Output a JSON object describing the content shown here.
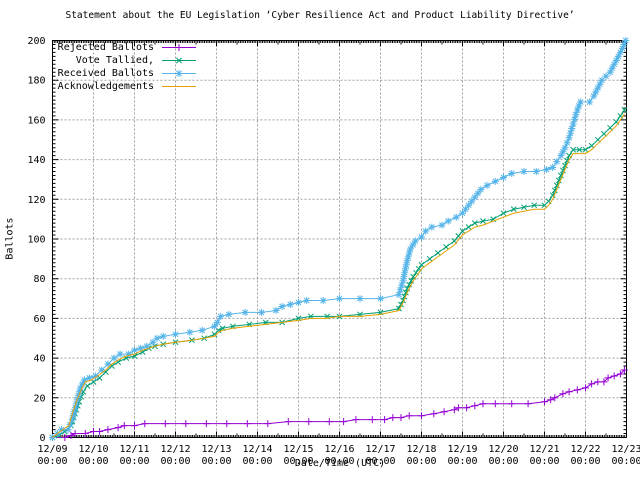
{
  "chart": {
    "title": "Statement about the EU Legislation ‘Cyber Resilience Act and Product Liability Directive’",
    "xlabel": "Date/Time (UTC)",
    "ylabel": "Ballots"
  },
  "legend": {
    "items": [
      {
        "label": "Rejected Ballots"
      },
      {
        "label": "Vote Tallied,"
      },
      {
        "label": "Received Ballots"
      },
      {
        "label": "Acknowledgements"
      }
    ]
  },
  "chart_data": {
    "type": "line",
    "title": "Statement about the EU Legislation ‘Cyber Resilience Act and Product Liability Directive’",
    "xlabel": "Date/Time (UTC)",
    "ylabel": "Ballots",
    "x_unit": "days since 12/09 00:00 UTC",
    "xlim": [
      0,
      14
    ],
    "ylim": [
      0,
      200
    ],
    "grid": true,
    "legend_position": "top-left",
    "y_ticks": [
      0,
      20,
      40,
      60,
      80,
      100,
      120,
      140,
      160,
      180,
      200
    ],
    "x_ticks": [
      {
        "date": "12/09",
        "time": "00:00"
      },
      {
        "date": "12/10",
        "time": "00:00"
      },
      {
        "date": "12/11",
        "time": "00:00"
      },
      {
        "date": "12/12",
        "time": "00:00"
      },
      {
        "date": "12/13",
        "time": "00:00"
      },
      {
        "date": "12/14",
        "time": "00:00"
      },
      {
        "date": "12/15",
        "time": "00:00"
      },
      {
        "date": "12/16",
        "time": "00:00"
      },
      {
        "date": "12/17",
        "time": "00:00"
      },
      {
        "date": "12/18",
        "time": "00:00"
      },
      {
        "date": "12/19",
        "time": "00:00"
      },
      {
        "date": "12/20",
        "time": "00:00"
      },
      {
        "date": "12/21",
        "time": "00:00"
      },
      {
        "date": "12/22",
        "time": "00:00"
      },
      {
        "date": "12/23",
        "time": "00:00"
      }
    ],
    "series": [
      {
        "name": "Rejected Ballots",
        "color": "#9400d3",
        "marker": "plus",
        "points": [
          [
            0,
            0
          ],
          [
            0.3,
            0
          ],
          [
            0.45,
            1
          ],
          [
            0.55,
            2
          ],
          [
            0.8,
            2
          ],
          [
            1.0,
            3
          ],
          [
            1.15,
            3
          ],
          [
            1.35,
            4
          ],
          [
            1.6,
            5
          ],
          [
            1.75,
            6
          ],
          [
            2.0,
            6
          ],
          [
            2.25,
            7
          ],
          [
            2.75,
            7
          ],
          [
            3.25,
            7
          ],
          [
            3.75,
            7
          ],
          [
            4.25,
            7
          ],
          [
            4.75,
            7
          ],
          [
            5.25,
            7
          ],
          [
            5.75,
            8
          ],
          [
            6.25,
            8
          ],
          [
            6.75,
            8
          ],
          [
            7.1,
            8
          ],
          [
            7.4,
            9
          ],
          [
            7.8,
            9
          ],
          [
            8.1,
            9
          ],
          [
            8.3,
            10
          ],
          [
            8.5,
            10
          ],
          [
            8.7,
            11
          ],
          [
            9.0,
            11
          ],
          [
            9.3,
            12
          ],
          [
            9.55,
            13
          ],
          [
            9.8,
            14
          ],
          [
            9.9,
            15
          ],
          [
            10.1,
            15
          ],
          [
            10.3,
            16
          ],
          [
            10.5,
            17
          ],
          [
            10.8,
            17
          ],
          [
            11.2,
            17
          ],
          [
            11.6,
            17
          ],
          [
            12.0,
            18
          ],
          [
            12.15,
            19
          ],
          [
            12.25,
            20
          ],
          [
            12.45,
            22
          ],
          [
            12.6,
            23
          ],
          [
            12.8,
            24
          ],
          [
            13.0,
            25
          ],
          [
            13.15,
            27
          ],
          [
            13.3,
            28
          ],
          [
            13.45,
            28
          ],
          [
            13.55,
            30
          ],
          [
            13.7,
            31
          ],
          [
            13.85,
            32
          ],
          [
            13.95,
            34
          ]
        ]
      },
      {
        "name": "Vote Tallied,",
        "color": "#009e73",
        "marker": "cross",
        "points": [
          [
            0,
            0
          ],
          [
            0.15,
            1
          ],
          [
            0.3,
            3
          ],
          [
            0.45,
            6
          ],
          [
            0.55,
            12
          ],
          [
            0.65,
            18
          ],
          [
            0.75,
            23
          ],
          [
            0.85,
            26
          ],
          [
            1.0,
            28
          ],
          [
            1.15,
            30
          ],
          [
            1.3,
            33
          ],
          [
            1.45,
            36
          ],
          [
            1.6,
            38
          ],
          [
            1.8,
            40
          ],
          [
            2.0,
            41
          ],
          [
            2.2,
            43
          ],
          [
            2.35,
            45
          ],
          [
            2.5,
            46
          ],
          [
            2.7,
            47
          ],
          [
            3.0,
            48
          ],
          [
            3.4,
            49
          ],
          [
            3.7,
            50
          ],
          [
            3.95,
            52
          ],
          [
            4.05,
            54
          ],
          [
            4.15,
            55
          ],
          [
            4.4,
            56
          ],
          [
            4.8,
            57
          ],
          [
            5.2,
            58
          ],
          [
            5.6,
            58
          ],
          [
            6.0,
            60
          ],
          [
            6.3,
            61
          ],
          [
            6.7,
            61
          ],
          [
            7.0,
            61
          ],
          [
            7.5,
            62
          ],
          [
            8.0,
            63
          ],
          [
            8.45,
            65
          ],
          [
            8.55,
            69
          ],
          [
            8.65,
            75
          ],
          [
            8.8,
            81
          ],
          [
            9.0,
            87
          ],
          [
            9.2,
            90
          ],
          [
            9.4,
            93
          ],
          [
            9.6,
            96
          ],
          [
            9.8,
            99
          ],
          [
            10.0,
            104
          ],
          [
            10.15,
            106
          ],
          [
            10.3,
            108
          ],
          [
            10.5,
            109
          ],
          [
            10.75,
            110
          ],
          [
            11.0,
            113
          ],
          [
            11.25,
            115
          ],
          [
            11.5,
            116
          ],
          [
            11.75,
            117
          ],
          [
            12.0,
            117
          ],
          [
            12.1,
            119
          ],
          [
            12.2,
            122
          ],
          [
            12.3,
            127
          ],
          [
            12.4,
            132
          ],
          [
            12.5,
            137
          ],
          [
            12.6,
            142
          ],
          [
            12.7,
            145
          ],
          [
            12.85,
            145
          ],
          [
            13.0,
            145
          ],
          [
            13.15,
            147
          ],
          [
            13.3,
            150
          ],
          [
            13.45,
            153
          ],
          [
            13.6,
            156
          ],
          [
            13.75,
            159
          ],
          [
            13.85,
            162
          ],
          [
            13.95,
            165
          ]
        ]
      },
      {
        "name": "Received Ballots",
        "color": "#56b4e9",
        "marker": "star",
        "points": [
          [
            0,
            0
          ],
          [
            0.12,
            2
          ],
          [
            0.22,
            4
          ],
          [
            0.38,
            4
          ],
          [
            0.48,
            9
          ],
          [
            0.58,
            17
          ],
          [
            0.68,
            25
          ],
          [
            0.78,
            29
          ],
          [
            0.9,
            30
          ],
          [
            1.05,
            31
          ],
          [
            1.2,
            34
          ],
          [
            1.35,
            37
          ],
          [
            1.5,
            40
          ],
          [
            1.65,
            42
          ],
          [
            1.85,
            42
          ],
          [
            2.0,
            44
          ],
          [
            2.15,
            45
          ],
          [
            2.3,
            46
          ],
          [
            2.45,
            48
          ],
          [
            2.55,
            50
          ],
          [
            2.7,
            51
          ],
          [
            3.0,
            52
          ],
          [
            3.35,
            53
          ],
          [
            3.65,
            54
          ],
          [
            3.95,
            56
          ],
          [
            4.02,
            58
          ],
          [
            4.1,
            61
          ],
          [
            4.3,
            62
          ],
          [
            4.7,
            63
          ],
          [
            5.1,
            63
          ],
          [
            5.45,
            64
          ],
          [
            5.6,
            66
          ],
          [
            5.8,
            67
          ],
          [
            6.0,
            68
          ],
          [
            6.2,
            69
          ],
          [
            6.6,
            69
          ],
          [
            7.0,
            70
          ],
          [
            7.5,
            70
          ],
          [
            8.0,
            70
          ],
          [
            8.45,
            72
          ],
          [
            8.55,
            79
          ],
          [
            8.65,
            89
          ],
          [
            8.73,
            95
          ],
          [
            8.85,
            99
          ],
          [
            9.0,
            101
          ],
          [
            9.1,
            104
          ],
          [
            9.25,
            106
          ],
          [
            9.5,
            107
          ],
          [
            9.65,
            109
          ],
          [
            9.85,
            111
          ],
          [
            10.0,
            113
          ],
          [
            10.15,
            117
          ],
          [
            10.3,
            121
          ],
          [
            10.45,
            125
          ],
          [
            10.6,
            127
          ],
          [
            10.8,
            129
          ],
          [
            11.0,
            131
          ],
          [
            11.2,
            133
          ],
          [
            11.5,
            134
          ],
          [
            11.8,
            134
          ],
          [
            12.05,
            135
          ],
          [
            12.2,
            136
          ],
          [
            12.3,
            139
          ],
          [
            12.4,
            142
          ],
          [
            12.5,
            146
          ],
          [
            12.6,
            151
          ],
          [
            12.7,
            158
          ],
          [
            12.8,
            165
          ],
          [
            12.88,
            169
          ],
          [
            13.1,
            169
          ],
          [
            13.2,
            172
          ],
          [
            13.3,
            176
          ],
          [
            13.4,
            180
          ],
          [
            13.5,
            182
          ],
          [
            13.6,
            184
          ],
          [
            13.7,
            188
          ],
          [
            13.8,
            192
          ],
          [
            13.9,
            196
          ],
          [
            13.98,
            200
          ]
        ]
      },
      {
        "name": "Acknowledgements",
        "color": "#e69f00",
        "marker": "none",
        "points": [
          [
            0,
            0
          ],
          [
            0.12,
            2
          ],
          [
            0.25,
            4
          ],
          [
            0.4,
            6
          ],
          [
            0.5,
            13
          ],
          [
            0.6,
            19
          ],
          [
            0.7,
            24
          ],
          [
            0.8,
            28
          ],
          [
            0.95,
            29
          ],
          [
            1.1,
            31
          ],
          [
            1.3,
            34
          ],
          [
            1.45,
            37
          ],
          [
            1.6,
            39
          ],
          [
            1.8,
            41
          ],
          [
            2.0,
            42
          ],
          [
            2.2,
            44
          ],
          [
            2.35,
            45
          ],
          [
            2.5,
            46
          ],
          [
            2.7,
            47
          ],
          [
            3.0,
            48
          ],
          [
            3.4,
            49
          ],
          [
            3.7,
            50
          ],
          [
            3.95,
            51
          ],
          [
            4.05,
            53
          ],
          [
            4.15,
            54
          ],
          [
            4.4,
            55
          ],
          [
            4.8,
            56
          ],
          [
            5.2,
            57
          ],
          [
            5.6,
            58
          ],
          [
            6.0,
            59
          ],
          [
            6.3,
            60
          ],
          [
            6.7,
            60
          ],
          [
            7.0,
            61
          ],
          [
            7.5,
            61
          ],
          [
            8.0,
            62
          ],
          [
            8.45,
            64
          ],
          [
            8.55,
            68
          ],
          [
            8.65,
            73
          ],
          [
            8.8,
            79
          ],
          [
            9.0,
            85
          ],
          [
            9.2,
            88
          ],
          [
            9.4,
            91
          ],
          [
            9.6,
            94
          ],
          [
            9.8,
            97
          ],
          [
            10.0,
            102
          ],
          [
            10.15,
            104
          ],
          [
            10.3,
            106
          ],
          [
            10.5,
            107
          ],
          [
            10.75,
            109
          ],
          [
            11.0,
            111
          ],
          [
            11.25,
            113
          ],
          [
            11.5,
            114
          ],
          [
            11.75,
            115
          ],
          [
            12.0,
            115
          ],
          [
            12.1,
            117
          ],
          [
            12.2,
            120
          ],
          [
            12.3,
            125
          ],
          [
            12.4,
            130
          ],
          [
            12.5,
            135
          ],
          [
            12.6,
            140
          ],
          [
            12.7,
            143
          ],
          [
            12.85,
            143
          ],
          [
            13.0,
            143
          ],
          [
            13.15,
            145
          ],
          [
            13.3,
            148
          ],
          [
            13.45,
            151
          ],
          [
            13.6,
            154
          ],
          [
            13.75,
            157
          ],
          [
            13.85,
            160
          ],
          [
            13.95,
            163
          ]
        ]
      }
    ],
    "colors": {
      "rejected": "#9400d3",
      "tallied": "#009e73",
      "received": "#56b4e9",
      "acknowledgements": "#e69f00",
      "grid": "#a0a0a0",
      "axis": "#000000"
    }
  }
}
